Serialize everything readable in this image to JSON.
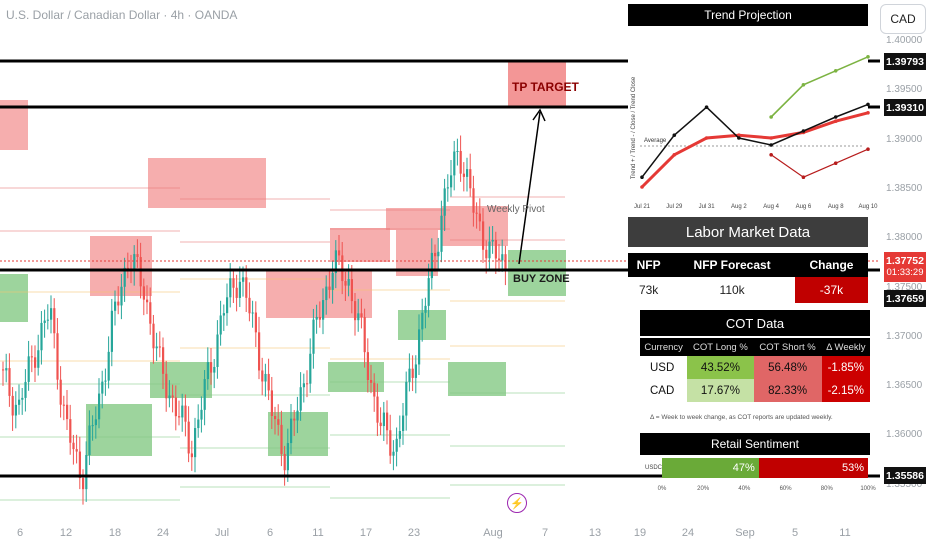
{
  "header": {
    "title": "U.S. Dollar / Canadian Dollar · 4h · OANDA",
    "currency_badge": "CAD"
  },
  "price_axis": {
    "ticks": [
      "1.40000",
      "1.39500",
      "1.39000",
      "1.38500",
      "1.38000",
      "1.37500",
      "1.37000",
      "1.36500",
      "1.36000",
      "1.35500"
    ],
    "flags": [
      {
        "label": "1.39793",
        "style": "black"
      },
      {
        "label": "1.39310",
        "style": "black"
      },
      {
        "label": "1.37752",
        "sub": "01:33:29",
        "style": "red"
      },
      {
        "label": "1.37659",
        "style": "black"
      },
      {
        "label": "1.35586",
        "style": "black"
      }
    ]
  },
  "time_axis": [
    "6",
    "12",
    "18",
    "24",
    "Jul",
    "6",
    "11",
    "17",
    "23",
    "Aug",
    "7",
    "13",
    "19",
    "24",
    "Sep",
    "5",
    "11"
  ],
  "annotations": {
    "tp_target": "TP TARGET",
    "buy_zone": "BUY ZONE",
    "weekly_pivot": "Weekly Pivot"
  },
  "chart_data": {
    "type": "candlestick",
    "title": "U.S. Dollar / Canadian Dollar · 4h · OANDA",
    "ylim": [
      1.353,
      1.401
    ],
    "levels": [
      1.39793,
      1.3931,
      1.37659,
      1.35586
    ],
    "current_price": 1.37752,
    "countdown": "01:33:29",
    "close_path": [
      1.365,
      1.362,
      1.368,
      1.372,
      1.36,
      1.355,
      1.362,
      1.371,
      1.378,
      1.374,
      1.366,
      1.362,
      1.358,
      1.365,
      1.372,
      1.376,
      1.37,
      1.362,
      1.357,
      1.364,
      1.371,
      1.377,
      1.375,
      1.368,
      1.36,
      1.358,
      1.366,
      1.374,
      1.383,
      1.389,
      1.382,
      1.378,
      1.377
    ]
  },
  "trend_projection": {
    "title": "Trend Projection",
    "ylabel": "Trend + / Trend - / Close / Trend Close",
    "average_label": "Average",
    "dates": [
      "Jul 21",
      "Jul 29",
      "Jul 31",
      "Aug 2",
      "Aug 4",
      "Aug 6",
      "Aug 8",
      "Aug 10"
    ],
    "series": {
      "upper": [
        null,
        null,
        null,
        null,
        0.55,
        0.78,
        0.88,
        0.98
      ],
      "close": [
        0.12,
        0.42,
        0.62,
        0.4,
        0.35,
        0.45,
        0.55,
        0.64
      ],
      "trend": [
        0.05,
        0.28,
        0.4,
        0.42,
        0.4,
        0.44,
        0.52,
        0.58
      ],
      "lower": [
        null,
        null,
        null,
        null,
        0.28,
        0.12,
        0.22,
        0.32
      ]
    }
  },
  "labor_market": {
    "title": "Labor Market Data",
    "headers": [
      "NFP",
      "NFP Forecast",
      "Change"
    ],
    "values": [
      "73k",
      "110k",
      "-37k"
    ]
  },
  "cot": {
    "title": "COT Data",
    "headers": [
      "Currency",
      "COT Long %",
      "COT Short %",
      "Δ Weekly"
    ],
    "rows": [
      {
        "currency": "USD",
        "long": "43.52%",
        "short": "56.48%",
        "weekly": "-1.85%"
      },
      {
        "currency": "CAD",
        "long": "17.67%",
        "short": "82.33%",
        "weekly": "-2.15%"
      }
    ],
    "note": "Δ = Week to week change, as COT reports are updated weekly."
  },
  "retail_sentiment": {
    "title": "Retail Sentiment",
    "pair": "USDC...",
    "long_pct": 47,
    "short_pct": 53,
    "long_label": "47%",
    "short_label": "53%",
    "ticks": [
      "0%",
      "20%",
      "40%",
      "60%",
      "80%",
      "100%"
    ]
  }
}
